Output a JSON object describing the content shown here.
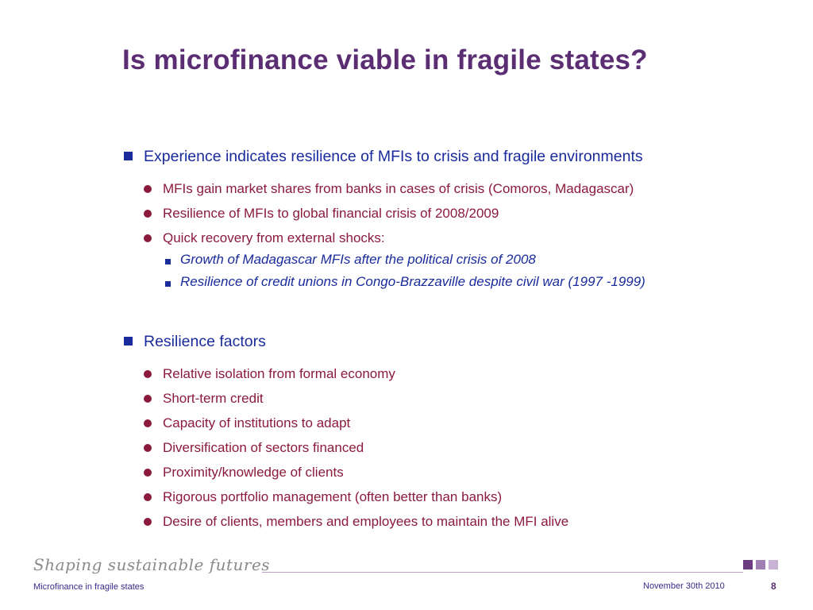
{
  "slide": {
    "title": "Is microfinance viable in fragile states?",
    "sections": [
      {
        "heading": "Experience indicates resilience of MFIs to crisis and fragile environments",
        "items": [
          "MFIs gain market shares from banks in cases of crisis (Comoros, Madagascar)",
          "Resilience of MFIs to global financial crisis of 2008/2009",
          "Quick recovery from external shocks:"
        ],
        "subitems": [
          "Growth of Madagascar MFIs after the political crisis of 2008",
          "Resilience of credit unions in Congo-Brazzaville despite civil war (1997 -1999)"
        ]
      },
      {
        "heading": "Resilience factors",
        "items": [
          "Relative isolation from formal economy",
          "Short-term credit",
          "Capacity of institutions to adapt",
          "Diversification of sectors financed",
          "Proximity/knowledge of clients",
          "Rigorous portfolio management (often better than banks)",
          "Desire of clients, members and employees to maintain the MFI alive"
        ]
      }
    ]
  },
  "footer": {
    "tagline": "Shaping sustainable futures",
    "left_text": "Microfinance in fragile states",
    "date": "November 30th 2010",
    "page_number": "8"
  },
  "colors": {
    "title": "#5b2d73",
    "level1": "#1a2b9c",
    "level2": "#8b1a3c"
  }
}
